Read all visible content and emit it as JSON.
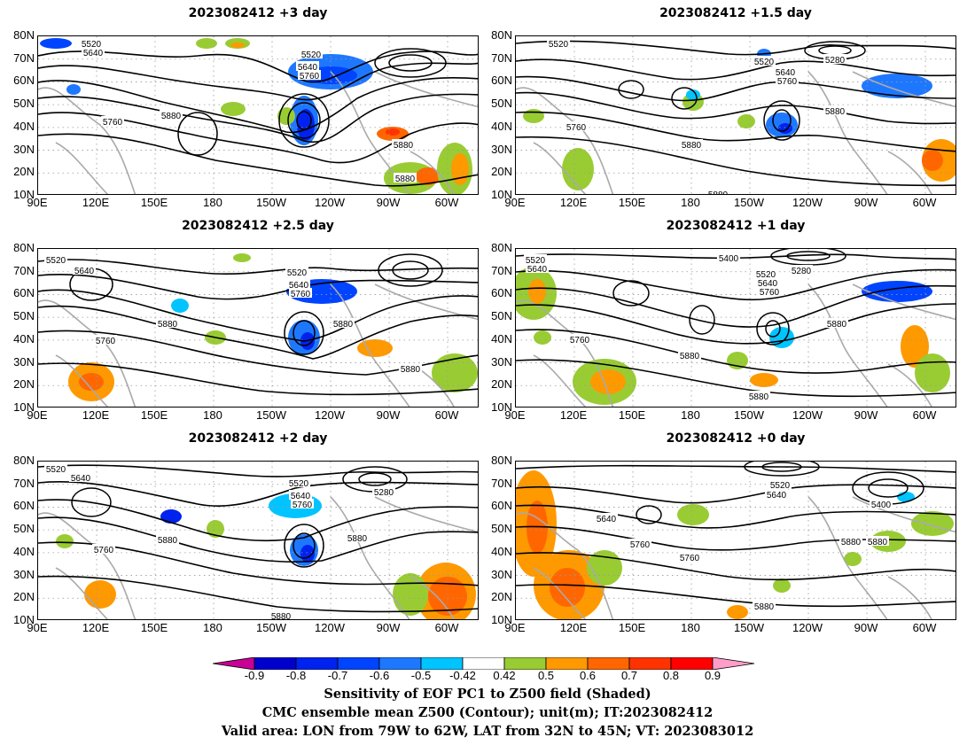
{
  "panels": [
    {
      "id": "p1",
      "title": "2023082412 +3 day",
      "contour_labels": [
        {
          "text": "5520"
        },
        {
          "text": "5640"
        },
        {
          "text": "5520"
        },
        {
          "text": "5640"
        },
        {
          "text": "5760"
        },
        {
          "text": "5760"
        },
        {
          "text": "5880"
        },
        {
          "text": "5880"
        },
        {
          "text": "5880"
        }
      ]
    },
    {
      "id": "p2",
      "title": "2023082412 +1.5 day",
      "contour_labels": [
        {
          "text": "5520"
        },
        {
          "text": "5280"
        },
        {
          "text": "5520"
        },
        {
          "text": "5640"
        },
        {
          "text": "5760"
        },
        {
          "text": "5760"
        },
        {
          "text": "5880"
        },
        {
          "text": "5880"
        },
        {
          "text": "5880"
        }
      ]
    },
    {
      "id": "p3",
      "title": "2023082412 +2.5 day",
      "contour_labels": [
        {
          "text": "5520"
        },
        {
          "text": "5640"
        },
        {
          "text": "5520"
        },
        {
          "text": "5640"
        },
        {
          "text": "5760"
        },
        {
          "text": "5760"
        },
        {
          "text": "5880"
        },
        {
          "text": "5880"
        },
        {
          "text": "5880"
        }
      ]
    },
    {
      "id": "p4",
      "title": "2023082412 +1 day",
      "contour_labels": [
        {
          "text": "5520"
        },
        {
          "text": "5640"
        },
        {
          "text": "5400"
        },
        {
          "text": "5280"
        },
        {
          "text": "5520"
        },
        {
          "text": "5640"
        },
        {
          "text": "5760"
        },
        {
          "text": "5760"
        },
        {
          "text": "5880"
        },
        {
          "text": "5880"
        },
        {
          "text": "5880"
        }
      ]
    },
    {
      "id": "p5",
      "title": "2023082412 +2 day",
      "contour_labels": [
        {
          "text": "5520"
        },
        {
          "text": "5640"
        },
        {
          "text": "5520"
        },
        {
          "text": "5640"
        },
        {
          "text": "5760"
        },
        {
          "text": "5280"
        },
        {
          "text": "5760"
        },
        {
          "text": "5880"
        },
        {
          "text": "5880"
        },
        {
          "text": "5880"
        }
      ]
    },
    {
      "id": "p6",
      "title": "2023082412 +0 day",
      "contour_labels": [
        {
          "text": "5520"
        },
        {
          "text": "5640"
        },
        {
          "text": "5400"
        },
        {
          "text": "5640"
        },
        {
          "text": "5880"
        },
        {
          "text": "5760"
        },
        {
          "text": "5760"
        },
        {
          "text": "5880"
        },
        {
          "text": "5880"
        }
      ]
    }
  ],
  "axes": {
    "lat_labels": [
      "80N",
      "70N",
      "60N",
      "50N",
      "40N",
      "30N",
      "20N",
      "10N"
    ],
    "lon_labels": [
      "90E",
      "120E",
      "150E",
      "180",
      "150W",
      "120W",
      "90W",
      "60W"
    ]
  },
  "colorbar": {
    "labels": [
      "-0.9",
      "-0.8",
      "-0.7",
      "-0.6",
      "-0.5",
      "-0.42",
      "0.42",
      "0.5",
      "0.6",
      "0.7",
      "0.8",
      "0.9"
    ],
    "colors": [
      "#0000cc",
      "#0022ee",
      "#0044ff",
      "#1e78ff",
      "#00c4ff",
      "#ffffff",
      "#99cc33",
      "#ff9900",
      "#ff6600",
      "#ff3300",
      "#ff0000"
    ],
    "under_color": "#c80096",
    "over_color": "#ff9ec8"
  },
  "captions": [
    "Sensitivity of EOF PC1 to Z500 field (Shaded)",
    "CMC ensemble mean Z500 (Contour); unit(m); IT:2023082412",
    "Valid area: LON from 79W to 62W, LAT from 32N to 45N; VT: 2023083012"
  ],
  "colors": {
    "contour": "#000000",
    "coast": "#aaaaaa",
    "grid": "#999999"
  }
}
